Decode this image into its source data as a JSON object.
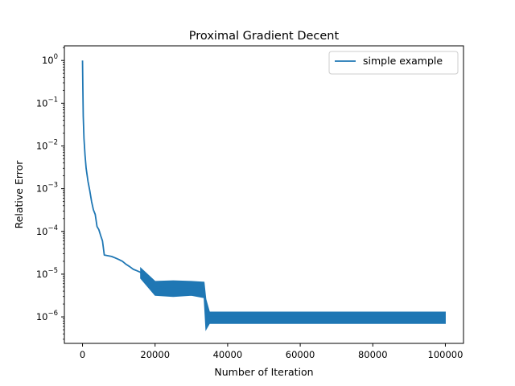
{
  "chart_data": {
    "type": "line",
    "title": "Proximal Gradient Decent",
    "xlabel": "Number of Iteration",
    "ylabel": "Relative Error",
    "xscale": "linear",
    "yscale": "log",
    "xlim": [
      -5000,
      105000
    ],
    "ylim": [
      2.4e-07,
      2.2
    ],
    "xticks": [
      0,
      20000,
      40000,
      60000,
      80000,
      100000
    ],
    "xtick_labels": [
      "0",
      "20000",
      "40000",
      "60000",
      "80000",
      "100000"
    ],
    "yticks": [
      1e-06,
      1e-05,
      0.0001,
      0.001,
      0.01,
      0.1,
      1
    ],
    "ytick_labels": [
      {
        "base": "10",
        "exp": "−6"
      },
      {
        "base": "10",
        "exp": "−5"
      },
      {
        "base": "10",
        "exp": "−4"
      },
      {
        "base": "10",
        "exp": "−3"
      },
      {
        "base": "10",
        "exp": "−2"
      },
      {
        "base": "10",
        "exp": "−1"
      },
      {
        "base": "10",
        "exp": "0"
      }
    ],
    "grid": false,
    "legend": {
      "position": "top-right",
      "entries": [
        "simple example"
      ]
    },
    "colors": {
      "series": "#1f77b4",
      "axes": "#000000"
    },
    "series": [
      {
        "name": "simple example",
        "x": [
          0,
          100,
          200,
          400,
          700,
          1000,
          1500,
          2000,
          2500,
          3000,
          3500,
          4000,
          4500,
          5000,
          5500,
          6000,
          7000,
          8000,
          9000,
          10000,
          11000,
          12000,
          13000,
          14000,
          15000,
          16000,
          17000,
          18000,
          20000,
          22000,
          24000,
          26000,
          28000,
          30000,
          32000,
          33500,
          34000,
          34500,
          35000,
          40000,
          50000,
          60000,
          70000,
          80000,
          90000,
          100000
        ],
        "y": [
          1.0,
          0.2,
          0.05,
          0.015,
          0.006,
          0.003,
          0.0015,
          0.0009,
          0.0005,
          0.00032,
          0.00025,
          0.00013,
          0.00011,
          8e-05,
          6e-05,
          2.8e-05,
          2.7e-05,
          2.6e-05,
          2.4e-05,
          2.2e-05,
          2e-05,
          1.7e-05,
          1.5e-05,
          1.3e-05,
          1.2e-05,
          1.1e-05,
          8e-06,
          6.5e-06,
          5e-06,
          4.8e-06,
          4.7e-06,
          4.6e-06,
          4.5e-06,
          4.6e-06,
          4.7e-06,
          4.5e-06,
          1.2e-06,
          1e-06,
          1e-06,
          1e-06,
          1e-06,
          1e-06,
          1e-06,
          1e-06,
          1e-06,
          1e-06
        ],
        "band": {
          "x": [
            16000,
            20000,
            25000,
            30000,
            33500,
            34000,
            35000,
            100000
          ],
          "ymin": [
            8e-06,
            3.2e-06,
            3e-06,
            3.2e-06,
            2.8e-06,
            5e-07,
            7e-07,
            7e-07
          ],
          "ymax": [
            1.4e-05,
            6.8e-06,
            7e-06,
            6.8e-06,
            6.5e-06,
            2.6e-06,
            1.3e-06,
            1.3e-06
          ]
        }
      }
    ]
  }
}
